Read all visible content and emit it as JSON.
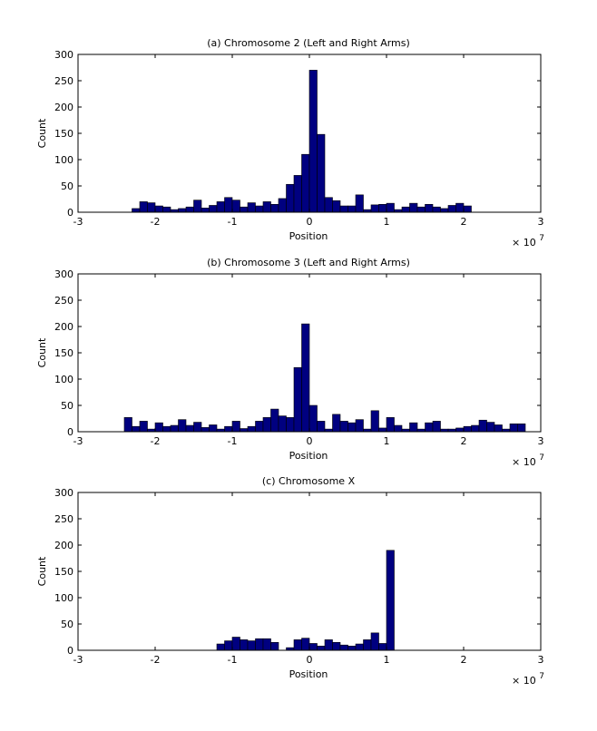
{
  "chart_data": [
    {
      "type": "bar",
      "title": "(a) Chromosome 2 (Left and Right Arms)",
      "xlabel": "Position",
      "ylabel": "Count",
      "x_scale_label": "× 10",
      "x_scale_exponent": "7",
      "xlim": [
        -3,
        3
      ],
      "ylim": [
        0,
        300
      ],
      "xticks": [
        "-3",
        "-2",
        "-1",
        "0",
        "1",
        "2",
        "3"
      ],
      "yticks": [
        "0",
        "50",
        "100",
        "150",
        "200",
        "250",
        "300"
      ],
      "bin_width": 0.1,
      "bin_start": -2.3,
      "values": [
        7,
        20,
        18,
        12,
        10,
        5,
        7,
        10,
        23,
        8,
        13,
        20,
        28,
        23,
        10,
        18,
        12,
        20,
        15,
        26,
        53,
        70,
        110,
        270,
        148,
        28,
        22,
        12,
        12,
        33,
        5,
        14,
        15,
        17,
        5,
        10,
        17,
        10,
        15,
        10,
        7,
        13,
        17,
        12
      ]
    },
    {
      "type": "bar",
      "title": "(b) Chromosome 3 (Left and Right Arms)",
      "xlabel": "Position",
      "ylabel": "Count",
      "x_scale_label": "× 10",
      "x_scale_exponent": "7",
      "xlim": [
        -3,
        3
      ],
      "ylim": [
        0,
        300
      ],
      "xticks": [
        "-3",
        "-2",
        "-1",
        "0",
        "1",
        "2",
        "3"
      ],
      "yticks": [
        "0",
        "50",
        "100",
        "150",
        "200",
        "250",
        "300"
      ],
      "bin_width": 0.1,
      "bin_start": -2.4,
      "values": [
        27,
        10,
        20,
        5,
        17,
        10,
        12,
        23,
        12,
        18,
        8,
        13,
        5,
        10,
        20,
        6,
        10,
        20,
        27,
        43,
        30,
        27,
        122,
        205,
        50,
        20,
        5,
        33,
        20,
        17,
        23,
        5,
        40,
        7,
        27,
        12,
        5,
        17,
        5,
        17,
        20,
        5,
        5,
        7,
        10,
        12,
        22,
        18,
        13,
        5,
        15,
        15
      ]
    },
    {
      "type": "bar",
      "title": "(c) Chromosome X",
      "xlabel": "Position",
      "ylabel": "Count",
      "x_scale_label": "× 10",
      "x_scale_exponent": "7",
      "xlim": [
        -3,
        3
      ],
      "ylim": [
        0,
        300
      ],
      "xticks": [
        "-3",
        "-2",
        "-1",
        "0",
        "1",
        "2",
        "3"
      ],
      "yticks": [
        "0",
        "50",
        "100",
        "150",
        "200",
        "250",
        "300"
      ],
      "bin_width": 0.1,
      "bin_start": -1.2,
      "values": [
        12,
        18,
        25,
        20,
        18,
        22,
        22,
        15,
        0,
        5,
        20,
        23,
        13,
        8,
        20,
        15,
        10,
        8,
        12,
        20,
        33,
        13,
        190
      ]
    }
  ],
  "colors": {
    "bar_fill": "#000080",
    "bar_edge": "#000000",
    "axes": "#000000",
    "background": "#ffffff"
  }
}
